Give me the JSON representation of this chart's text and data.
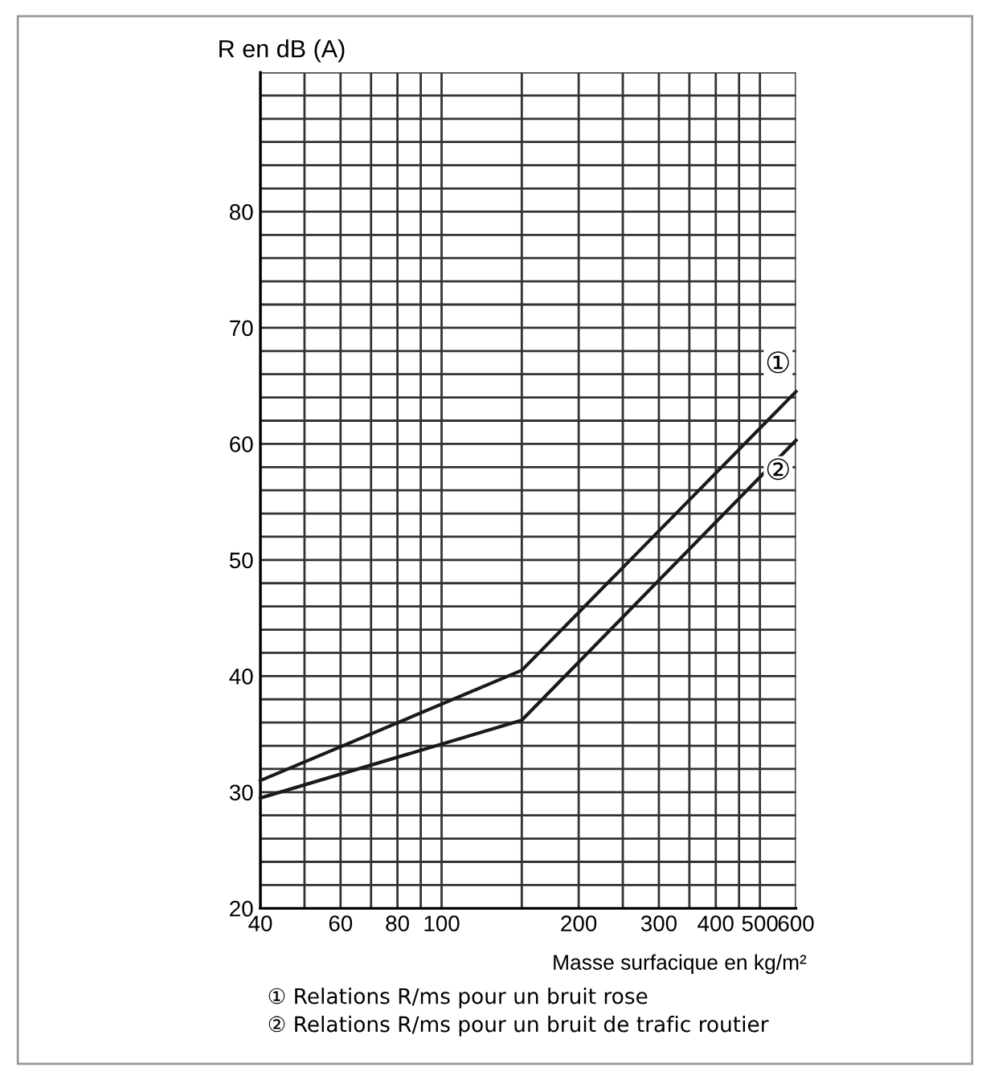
{
  "chart_data": {
    "type": "line",
    "xlabel": "Masse surfacique en kg/m²",
    "ylabel": "R en dB (A)",
    "series": [
      {
        "name": "①",
        "color": "#1a1a1a",
        "x": [
          40,
          150,
          600
        ],
        "values": [
          31,
          40.5,
          64.5
        ]
      },
      {
        "name": "②",
        "color": "#1a1a1a",
        "x": [
          40,
          150,
          600
        ],
        "values": [
          29.5,
          36.2,
          60.3
        ]
      }
    ],
    "log": "x",
    "xlim": [
      40,
      600
    ],
    "xticks": [
      40,
      {
        "value": 50,
        "label": null
      },
      60,
      {
        "value": 70,
        "label": null
      },
      80,
      {
        "value": 90,
        "label": null
      },
      100,
      {
        "value": 150,
        "label": null
      },
      200,
      {
        "value": 250,
        "label": null
      },
      300,
      {
        "value": 350,
        "label": null
      },
      400,
      {
        "value": 450,
        "label": null
      },
      500,
      600
    ],
    "ylim": [
      20,
      92
    ],
    "yticks": [
      20,
      {
        "value": 22,
        "label": null
      },
      {
        "value": 24,
        "label": null
      },
      {
        "value": 26,
        "label": null
      },
      {
        "value": 28,
        "label": null
      },
      30,
      {
        "value": 32,
        "label": null
      },
      {
        "value": 34,
        "label": null
      },
      {
        "value": 36,
        "label": null
      },
      {
        "value": 38,
        "label": null
      },
      40,
      {
        "value": 42,
        "label": null
      },
      {
        "value": 44,
        "label": null
      },
      {
        "value": 46,
        "label": null
      },
      {
        "value": 48,
        "label": null
      },
      50,
      {
        "value": 52,
        "label": null
      },
      {
        "value": 54,
        "label": null
      },
      {
        "value": 56,
        "label": null
      },
      {
        "value": 58,
        "label": null
      },
      60,
      {
        "value": 62,
        "label": null
      },
      {
        "value": 64,
        "label": null
      },
      {
        "value": 66,
        "label": null
      },
      {
        "value": 68,
        "label": null
      },
      70,
      {
        "value": 72,
        "label": null
      },
      {
        "value": 74,
        "label": null
      },
      {
        "value": 76,
        "label": null
      },
      {
        "value": 78,
        "label": null
      },
      80,
      {
        "value": 82,
        "label": null
      },
      {
        "value": 84,
        "label": null
      },
      {
        "value": 86,
        "label": null
      },
      {
        "value": 88,
        "label": null
      },
      {
        "value": 90,
        "label": null
      },
      {
        "value": 92,
        "label": null
      }
    ],
    "grid": true,
    "legend": false,
    "marker": "none",
    "line_style": "solid",
    "annotations": [
      "① Relations R/ms pour un bruit rose",
      "② Relations R/ms pour un bruit de trafic routier"
    ]
  }
}
